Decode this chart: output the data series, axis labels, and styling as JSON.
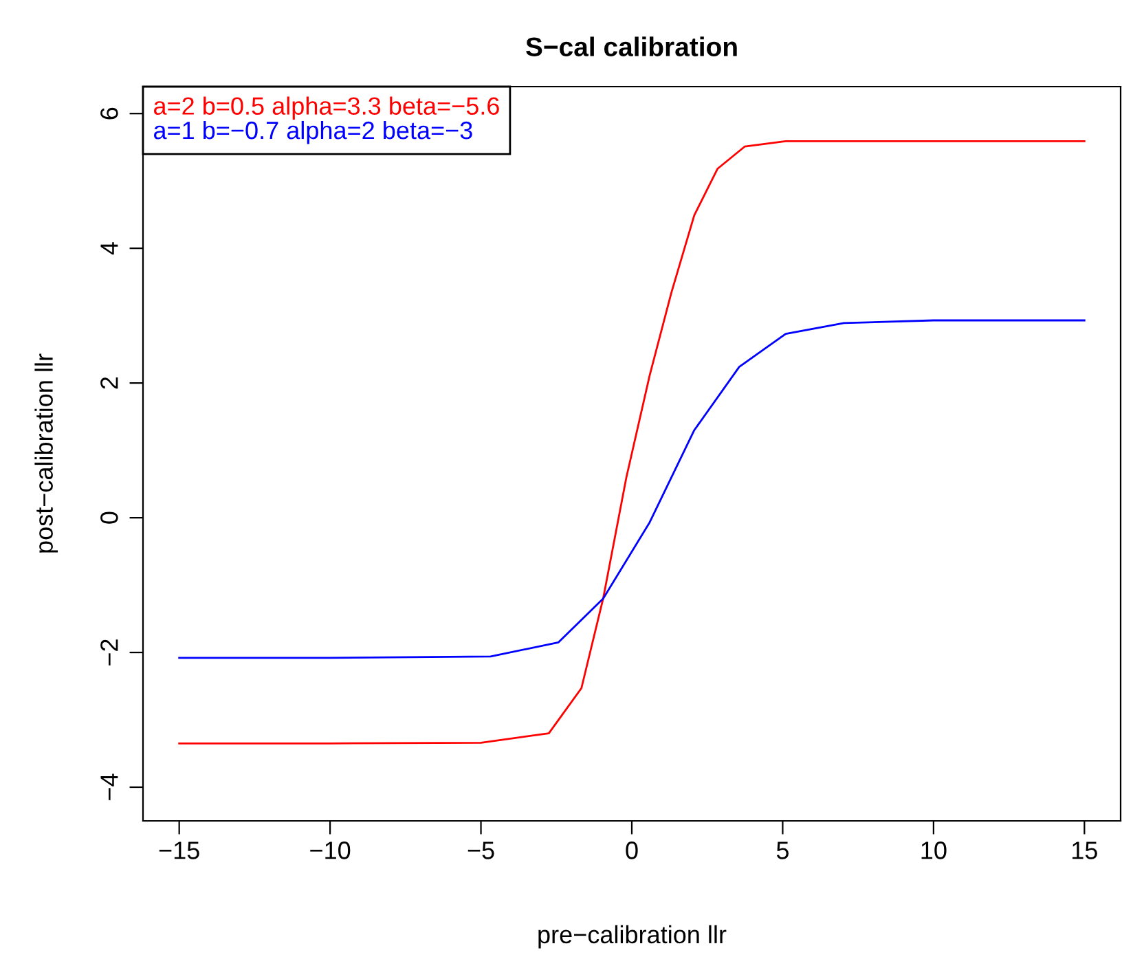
{
  "chart_data": {
    "type": "line",
    "title": "S−cal calibration",
    "xlabel": "pre−calibration llr",
    "ylabel": "post−calibration llr",
    "xlim": [
      -16.2,
      16.2
    ],
    "ylim": [
      -4.5,
      6.4
    ],
    "xticks": [
      {
        "value": -15,
        "label": "−15"
      },
      {
        "value": -10,
        "label": "−10"
      },
      {
        "value": -5,
        "label": "−5"
      },
      0,
      5,
      10,
      15
    ],
    "yticks": [
      {
        "value": -4,
        "label": "−4"
      },
      {
        "value": -2,
        "label": "−2"
      },
      0,
      2,
      4,
      6
    ],
    "grid": false,
    "legend": "top left",
    "marker": "none",
    "line_style": "solid",
    "series": [
      {
        "name": "a=2 b=0.5 alpha=3.3 beta=−5.6",
        "color": "#ff0000",
        "x": [
          -15,
          -10,
          -5,
          -2.75,
          -1.67,
          -0.95,
          -0.18,
          0.59,
          1.31,
          2.07,
          2.84,
          3.74,
          5.1,
          10,
          15
        ],
        "values": [
          -3.35,
          -3.35,
          -3.34,
          -3.2,
          -2.53,
          -1.2,
          0.6,
          2.11,
          3.34,
          4.49,
          5.18,
          5.51,
          5.59,
          5.59,
          5.59
        ]
      },
      {
        "name": "a=1 b=−0.7 alpha=2 beta=−3",
        "color": "#0000ff",
        "x": [
          -15,
          -10,
          -4.68,
          -2.43,
          -0.95,
          0.59,
          2.07,
          3.56,
          5.1,
          7.03,
          10,
          15
        ],
        "values": [
          -2.08,
          -2.08,
          -2.06,
          -1.85,
          -1.2,
          -0.07,
          1.3,
          2.24,
          2.73,
          2.89,
          2.93,
          2.93
        ]
      }
    ]
  }
}
